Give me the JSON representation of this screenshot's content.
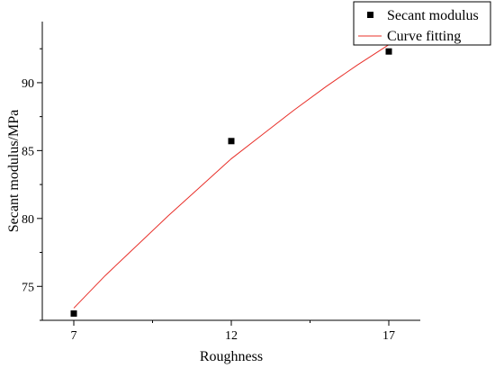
{
  "chart_data": {
    "type": "scatter",
    "title": "",
    "xlabel": "Roughness",
    "ylabel": "Secant modulus/MPa",
    "x_ticks": [
      7,
      12,
      17
    ],
    "y_ticks": [
      75,
      80,
      85,
      90
    ],
    "xlim": [
      6,
      18.0
    ],
    "ylim": [
      72.5,
      94.5
    ],
    "grid": false,
    "legend_position": "top-right",
    "series": [
      {
        "name": "Secant modulus",
        "kind": "scatter",
        "marker": "square",
        "color": "#000000",
        "x": [
          7,
          12,
          17
        ],
        "y": [
          73.0,
          85.7,
          92.3
        ]
      },
      {
        "name": "Curve fitting",
        "kind": "line",
        "color": "#e8302a",
        "x": [
          7,
          8,
          9,
          10,
          11,
          12,
          13,
          14,
          15,
          16,
          17
        ],
        "y": [
          73.4,
          75.8,
          78.0,
          80.2,
          82.3,
          84.4,
          86.2,
          88.0,
          89.7,
          91.3,
          92.8
        ]
      }
    ]
  }
}
